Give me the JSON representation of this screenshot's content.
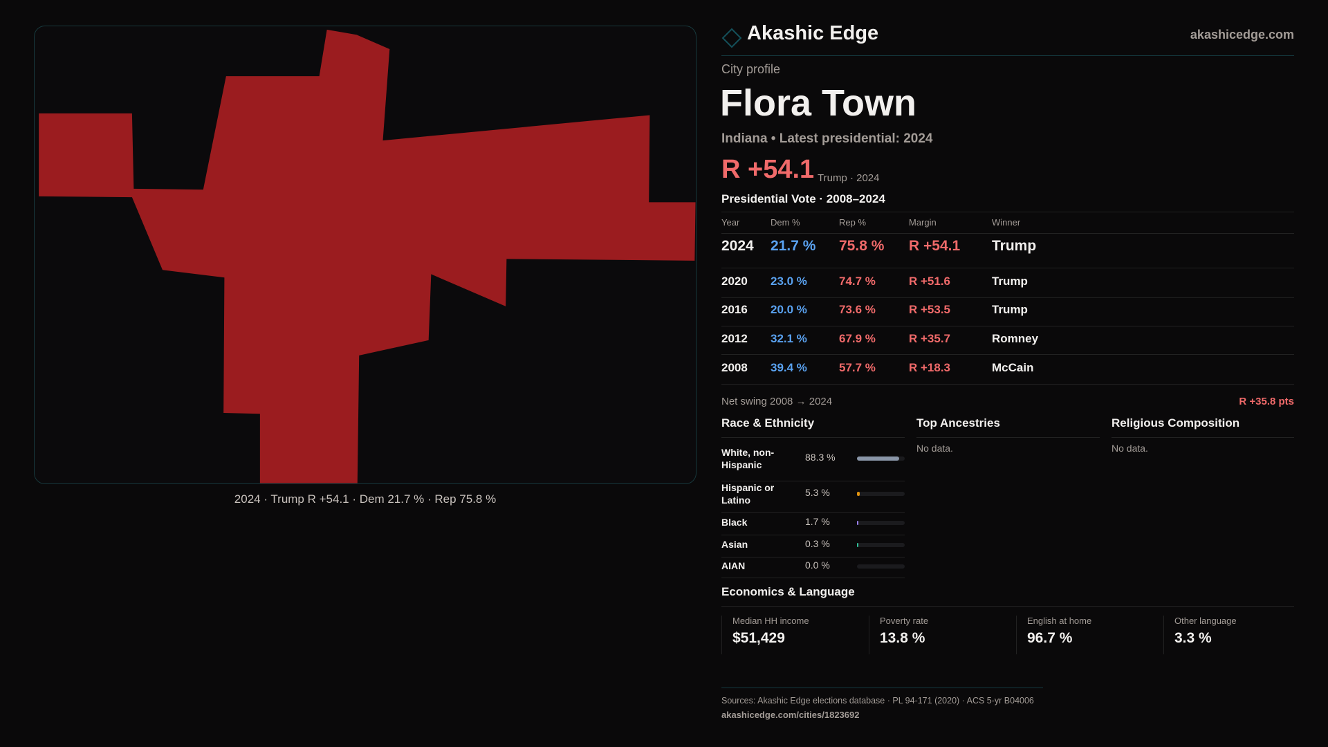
{
  "brand": {
    "name": "Akashic Edge",
    "site": "akashicedge.com"
  },
  "profile": {
    "kicker": "City profile",
    "title": "Flora Town",
    "subtitle": "Indiana • Latest presidential: 2024",
    "margin": "R +54.1",
    "margin_note": "Trump · 2024"
  },
  "map": {
    "fill_color": "#9b1c1f",
    "caption": "2024 · Trump R +54.1 · Dem 21.7 % · Rep 75.8 %"
  },
  "votes": {
    "heading": "Presidential Vote · 2008–2024",
    "columns": [
      "Year",
      "Dem %",
      "Rep %",
      "Margin",
      "Winner"
    ],
    "rows": [
      {
        "year": "2024",
        "dem": "21.7 %",
        "rep": "75.8 %",
        "margin": "R +54.1",
        "winner": "Trump"
      },
      {
        "year": "2020",
        "dem": "23.0 %",
        "rep": "74.7 %",
        "margin": "R +51.6",
        "winner": "Trump"
      },
      {
        "year": "2016",
        "dem": "20.0 %",
        "rep": "73.6 %",
        "margin": "R +53.5",
        "winner": "Trump"
      },
      {
        "year": "2012",
        "dem": "32.1 %",
        "rep": "67.9 %",
        "margin": "R +35.7",
        "winner": "Romney"
      },
      {
        "year": "2008",
        "dem": "39.4 %",
        "rep": "57.7 %",
        "margin": "R +18.3",
        "winner": "McCain"
      }
    ],
    "swing_label": "Net swing 2008 → 2024",
    "swing_value": "R +35.8 pts"
  },
  "race": {
    "heading": "Race & Ethnicity",
    "rows": [
      {
        "label": "White, non-Hispanic",
        "value": "88.3 %",
        "pct": 88.3,
        "color": "#8a96a8"
      },
      {
        "label": "Hispanic or Latino",
        "value": "5.3 %",
        "pct": 5.3,
        "color": "#e0930f"
      },
      {
        "label": "Black",
        "value": "1.7 %",
        "pct": 1.7,
        "color": "#9a7ff0"
      },
      {
        "label": "Asian",
        "value": "0.3 %",
        "pct": 0.3,
        "color": "#2fc19a"
      },
      {
        "label": "AIAN",
        "value": "0.0 %",
        "pct": 0.0,
        "color": "#888"
      }
    ]
  },
  "ancestries": {
    "heading": "Top Ancestries",
    "empty": "No data."
  },
  "religion": {
    "heading": "Religious Composition",
    "empty": "No data."
  },
  "economics": {
    "heading": "Economics & Language",
    "stats": [
      {
        "label": "Median HH income",
        "value": "$51,429"
      },
      {
        "label": "Poverty rate",
        "value": "13.8 %"
      },
      {
        "label": "English at home",
        "value": "96.7 %"
      },
      {
        "label": "Other language",
        "value": "3.3 %"
      }
    ]
  },
  "footer": {
    "sources": "Sources: Akashic Edge elections database · PL 94-171 (2020) · ACS 5-yr B04006",
    "url": "akashicedge.com/cities/1823692"
  }
}
